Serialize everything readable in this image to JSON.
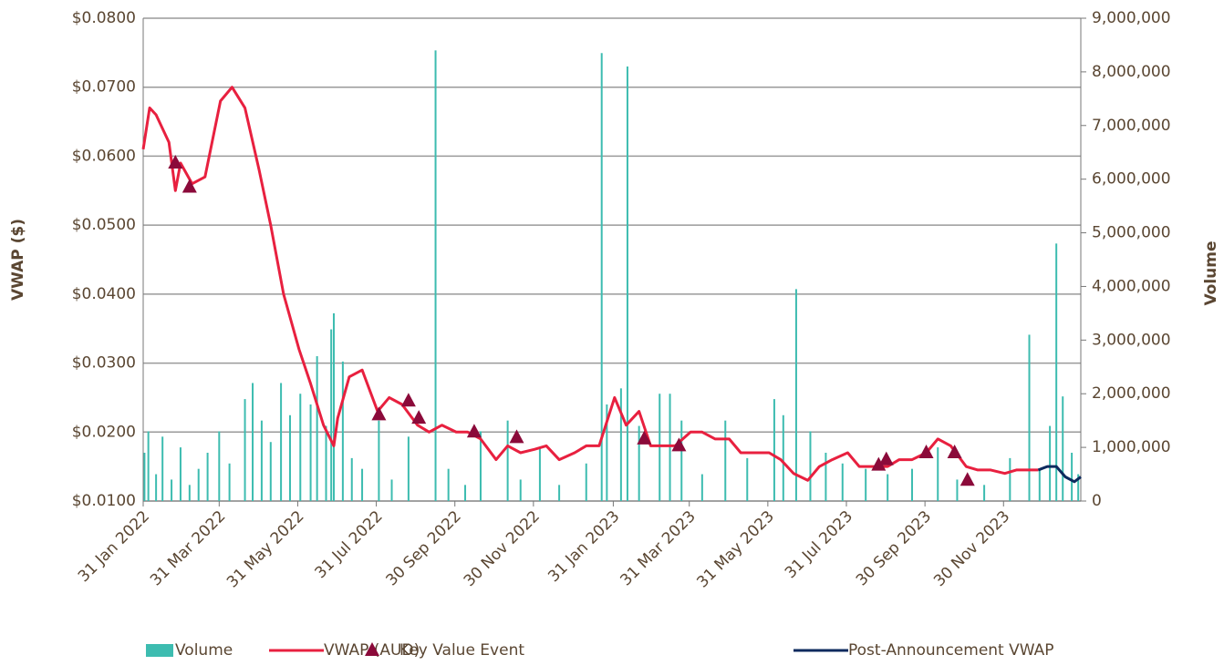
{
  "chart_data": {
    "type": "combo",
    "y_label": "VWAP ($)",
    "y2_label": "Volume",
    "xlim": [
      "2022-01-31",
      "2024-01-29"
    ],
    "xticks": [
      {
        "value": "2022-01-31",
        "label": "31 Jan 2022"
      },
      {
        "value": "2022-03-31",
        "label": "31 Mar 2022"
      },
      {
        "value": "2022-05-31",
        "label": "31 May 2022"
      },
      {
        "value": "2022-07-31",
        "label": "31 Jul 2022"
      },
      {
        "value": "2022-09-30",
        "label": "30 Sep 2022"
      },
      {
        "value": "2022-11-30",
        "label": "30 Nov 2022"
      },
      {
        "value": "2023-01-31",
        "label": "31 Jan 2023"
      },
      {
        "value": "2023-03-31",
        "label": "31 Mar 2023"
      },
      {
        "value": "2023-05-31",
        "label": "31 May 2023"
      },
      {
        "value": "2023-07-31",
        "label": "31 Jul 2023"
      },
      {
        "value": "2023-09-30",
        "label": "30 Sep 2023"
      },
      {
        "value": "2023-11-30",
        "label": "30 Nov 2023"
      }
    ],
    "ylim": [
      0.01,
      0.08
    ],
    "yticks": [
      {
        "value": 0.01,
        "label": "$0.0100"
      },
      {
        "value": 0.02,
        "label": "$0.0200"
      },
      {
        "value": 0.03,
        "label": "$0.0300"
      },
      {
        "value": 0.04,
        "label": "$0.0400"
      },
      {
        "value": 0.05,
        "label": "$0.0500"
      },
      {
        "value": 0.06,
        "label": "$0.0600"
      },
      {
        "value": 0.07,
        "label": "$0.0700"
      },
      {
        "value": 0.08,
        "label": "$0.0800"
      }
    ],
    "y2lim": [
      0,
      9000000
    ],
    "y2ticks": [
      0,
      {
        "value": 1000000,
        "label": "1,000,000"
      },
      {
        "value": 2000000,
        "label": "2,000,000"
      },
      {
        "value": 3000000,
        "label": "3,000,000"
      },
      {
        "value": 4000000,
        "label": "4,000,000"
      },
      {
        "value": 5000000,
        "label": "5,000,000"
      },
      {
        "value": 6000000,
        "label": "6,000,000"
      },
      {
        "value": 7000000,
        "label": "7,000,000"
      },
      {
        "value": 8000000,
        "label": "8,000,000"
      },
      {
        "value": 9000000,
        "label": "9,000,000"
      }
    ],
    "grid": true,
    "series": [
      {
        "name": "Volume",
        "type": "bar",
        "axis": "y2",
        "color": "#3dbcb0",
        "x": [
          "2022-02-01",
          "2022-02-04",
          "2022-02-10",
          "2022-02-15",
          "2022-02-22",
          "2022-03-01",
          "2022-03-08",
          "2022-03-15",
          "2022-03-22",
          "2022-03-31",
          "2022-04-08",
          "2022-04-20",
          "2022-04-26",
          "2022-05-03",
          "2022-05-10",
          "2022-05-18",
          "2022-05-25",
          "2022-06-02",
          "2022-06-10",
          "2022-06-15",
          "2022-06-22",
          "2022-06-26",
          "2022-06-28",
          "2022-07-05",
          "2022-07-12",
          "2022-07-20",
          "2022-08-02",
          "2022-08-12",
          "2022-08-25",
          "2022-09-15",
          "2022-09-25",
          "2022-10-08",
          "2022-10-20",
          "2022-11-10",
          "2022-11-20",
          "2022-12-05",
          "2022-12-20",
          "2023-01-10",
          "2023-01-22",
          "2023-01-26",
          "2023-02-06",
          "2023-02-11",
          "2023-02-20",
          "2023-03-08",
          "2023-03-16",
          "2023-03-25",
          "2023-04-10",
          "2023-04-28",
          "2023-05-15",
          "2023-06-05",
          "2023-06-12",
          "2023-06-22",
          "2023-07-03",
          "2023-07-15",
          "2023-07-28",
          "2023-08-15",
          "2023-09-01",
          "2023-09-20",
          "2023-10-10",
          "2023-10-25",
          "2023-11-15",
          "2023-12-05",
          "2023-12-20",
          "2023-12-28",
          "2024-01-05",
          "2024-01-10",
          "2024-01-15",
          "2024-01-22",
          "2024-01-27"
        ],
        "values": [
          900000,
          1300000,
          500000,
          1200000,
          400000,
          1000000,
          300000,
          600000,
          900000,
          1300000,
          700000,
          1900000,
          2200000,
          1500000,
          1100000,
          2200000,
          1600000,
          2000000,
          1800000,
          2700000,
          1400000,
          3200000,
          3500000,
          2600000,
          800000,
          600000,
          1500000,
          400000,
          1200000,
          8400000,
          600000,
          300000,
          1300000,
          1500000,
          400000,
          1000000,
          300000,
          700000,
          8350000,
          1800000,
          2100000,
          8100000,
          1400000,
          2000000,
          2000000,
          1500000,
          500000,
          1500000,
          800000,
          1900000,
          1600000,
          3950000,
          1300000,
          900000,
          700000,
          600000,
          500000,
          600000,
          1000000,
          400000,
          300000,
          800000,
          3100000,
          600000,
          1400000,
          4800000,
          1950000,
          900000,
          500000
        ]
      },
      {
        "name": "VWAP (AUD)",
        "type": "line",
        "color": "#e8203f",
        "x": [
          "2022-01-31",
          "2022-02-05",
          "2022-02-10",
          "2022-02-20",
          "2022-02-25",
          "2022-03-01",
          "2022-03-10",
          "2022-03-20",
          "2022-04-01",
          "2022-04-10",
          "2022-04-20",
          "2022-05-01",
          "2022-05-10",
          "2022-05-20",
          "2022-06-01",
          "2022-06-10",
          "2022-06-20",
          "2022-06-28",
          "2022-07-01",
          "2022-07-10",
          "2022-07-20",
          "2022-08-01",
          "2022-08-10",
          "2022-08-20",
          "2022-09-01",
          "2022-09-10",
          "2022-09-20",
          "2022-10-01",
          "2022-10-10",
          "2022-10-20",
          "2022-11-01",
          "2022-11-10",
          "2022-11-20",
          "2022-12-01",
          "2022-12-10",
          "2022-12-20",
          "2023-01-01",
          "2023-01-10",
          "2023-01-20",
          "2023-02-01",
          "2023-02-10",
          "2023-02-20",
          "2023-03-01",
          "2023-03-10",
          "2023-03-20",
          "2023-04-01",
          "2023-04-10",
          "2023-04-20",
          "2023-05-01",
          "2023-05-10",
          "2023-05-20",
          "2023-06-01",
          "2023-06-10",
          "2023-06-20",
          "2023-07-01",
          "2023-07-10",
          "2023-07-20",
          "2023-08-01",
          "2023-08-10",
          "2023-08-20",
          "2023-09-01",
          "2023-09-10",
          "2023-09-20",
          "2023-10-01",
          "2023-10-10",
          "2023-10-20",
          "2023-11-01",
          "2023-11-10",
          "2023-11-20",
          "2023-12-01",
          "2023-12-10",
          "2023-12-20",
          "2023-12-27"
        ],
        "values": [
          0.061,
          0.067,
          0.066,
          0.062,
          0.055,
          0.059,
          0.056,
          0.057,
          0.068,
          0.07,
          0.067,
          0.058,
          0.05,
          0.04,
          0.032,
          0.027,
          0.021,
          0.018,
          0.022,
          0.028,
          0.029,
          0.023,
          0.025,
          0.024,
          0.021,
          0.02,
          0.021,
          0.02,
          0.02,
          0.019,
          0.016,
          0.018,
          0.017,
          0.0175,
          0.018,
          0.016,
          0.017,
          0.018,
          0.018,
          0.025,
          0.021,
          0.023,
          0.018,
          0.018,
          0.018,
          0.02,
          0.02,
          0.019,
          0.019,
          0.017,
          0.017,
          0.017,
          0.016,
          0.014,
          0.013,
          0.015,
          0.016,
          0.017,
          0.015,
          0.015,
          0.015,
          0.016,
          0.016,
          0.017,
          0.019,
          0.018,
          0.015,
          0.0145,
          0.0145,
          0.014,
          0.0145,
          0.0145,
          0.0145
        ]
      },
      {
        "name": "Key Value Event",
        "type": "scatter",
        "color": "#8b0a3a",
        "x": [
          "2022-02-25",
          "2022-03-08",
          "2022-08-02",
          "2022-08-25",
          "2022-09-02",
          "2022-10-15",
          "2022-11-17",
          "2023-02-24",
          "2023-03-23",
          "2023-08-25",
          "2023-08-31",
          "2023-10-01",
          "2023-10-23",
          "2023-11-02"
        ],
        "values": [
          0.059,
          0.0555,
          0.0225,
          0.0245,
          0.022,
          0.02,
          0.0192,
          0.019,
          0.018,
          0.0152,
          0.016,
          0.017,
          0.017,
          0.013
        ]
      },
      {
        "name": "Post-Announcement VWAP",
        "type": "line",
        "color": "#0d2a5e",
        "x": [
          "2023-12-27",
          "2024-01-03",
          "2024-01-10",
          "2024-01-17",
          "2024-01-24",
          "2024-01-29"
        ],
        "values": [
          0.0145,
          0.015,
          0.015,
          0.0135,
          0.0128,
          0.0135
        ]
      }
    ]
  }
}
